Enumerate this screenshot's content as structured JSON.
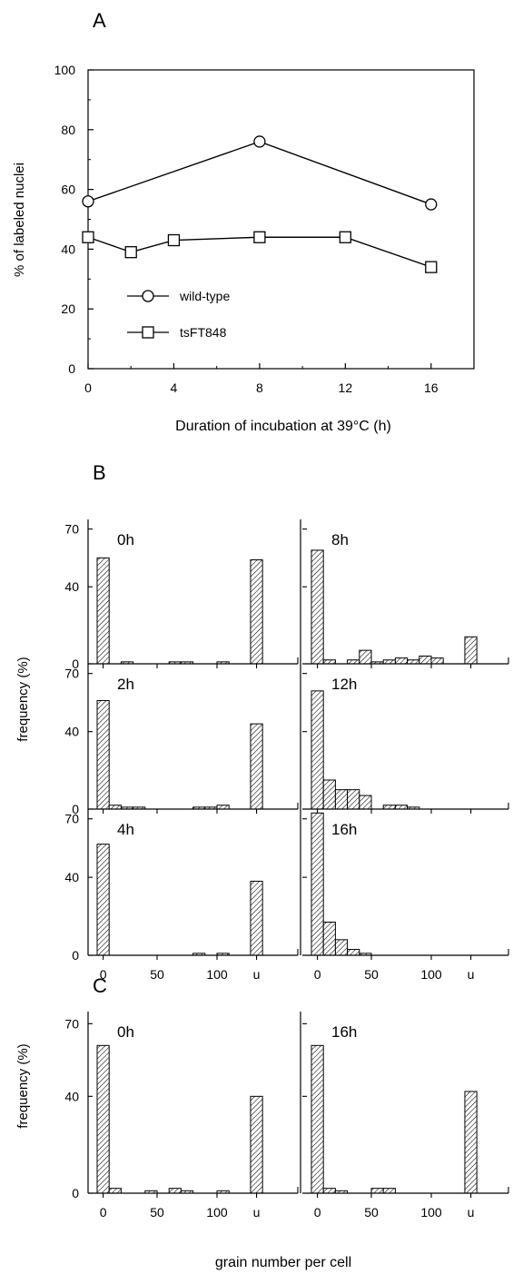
{
  "panels": {
    "a": "A",
    "b": "B",
    "c": "C"
  },
  "chart_data": [
    {
      "panel": "A",
      "type": "line",
      "xlabel": "Duration of incubation at 39°C (h)",
      "ylabel": "% of labeled nuclei",
      "xlim": [
        0,
        18
      ],
      "ylim": [
        0,
        100
      ],
      "x_ticks": [
        0,
        4,
        8,
        12,
        16
      ],
      "y_ticks": [
        0,
        20,
        40,
        60,
        80,
        100
      ],
      "legend_position": "lower-left",
      "series": [
        {
          "name": "wild-type",
          "marker": "circle",
          "x": [
            0,
            8,
            16
          ],
          "y": [
            56,
            76,
            55
          ]
        },
        {
          "name": "tsFT848",
          "marker": "square",
          "x": [
            0,
            2,
            4,
            8,
            12,
            16
          ],
          "y": [
            44,
            39,
            43,
            44,
            44,
            34
          ]
        }
      ]
    },
    {
      "panel": "B",
      "type": "bar",
      "ylabel": "frequency (%)",
      "ylim": [
        0,
        75
      ],
      "y_ticks": [
        0,
        40,
        70
      ],
      "x_ticks": [
        "0",
        "50",
        "100",
        "u"
      ],
      "bin_width": 10,
      "categories": [
        "0-9",
        "10-19",
        "20-29",
        "30-39",
        "40-49",
        "50-59",
        "60-69",
        "70-79",
        "80-89",
        "90-99",
        "100-109",
        "u"
      ],
      "hatch": "diagonal",
      "subplots": [
        {
          "label": "0h",
          "values": [
            55,
            0,
            1,
            0,
            0,
            0,
            1,
            1,
            0,
            0,
            1,
            54
          ]
        },
        {
          "label": "8h",
          "values": [
            59,
            2,
            0,
            2,
            7,
            1,
            2,
            3,
            2,
            4,
            3,
            14
          ]
        },
        {
          "label": "2h",
          "values": [
            56,
            2,
            1,
            1,
            0,
            0,
            0,
            0,
            1,
            1,
            2,
            44
          ]
        },
        {
          "label": "12h",
          "values": [
            61,
            15,
            10,
            10,
            7,
            0,
            2,
            2,
            1,
            0,
            0,
            0
          ]
        },
        {
          "label": "4h",
          "values": [
            57,
            0,
            0,
            0,
            0,
            0,
            0,
            0,
            1,
            0,
            1,
            38
          ]
        },
        {
          "label": "16h",
          "values": [
            73,
            17,
            8,
            3,
            1,
            0,
            0,
            0,
            0,
            0,
            0,
            0
          ]
        }
      ]
    },
    {
      "panel": "C",
      "type": "bar",
      "ylabel": "frequency (%)",
      "xlabel": "grain number per cell",
      "ylim": [
        0,
        75
      ],
      "y_ticks": [
        0,
        40,
        70
      ],
      "x_ticks": [
        "0",
        "50",
        "100",
        "u"
      ],
      "bin_width": 10,
      "categories": [
        "0-9",
        "10-19",
        "20-29",
        "30-39",
        "40-49",
        "50-59",
        "60-69",
        "70-79",
        "80-89",
        "90-99",
        "100-109",
        "u"
      ],
      "hatch": "diagonal",
      "subplots": [
        {
          "label": "0h",
          "values": [
            61,
            2,
            0,
            0,
            1,
            0,
            2,
            1,
            0,
            0,
            1,
            40
          ]
        },
        {
          "label": "16h",
          "values": [
            61,
            2,
            1,
            0,
            0,
            2,
            2,
            0,
            0,
            0,
            0,
            42
          ]
        }
      ]
    }
  ]
}
